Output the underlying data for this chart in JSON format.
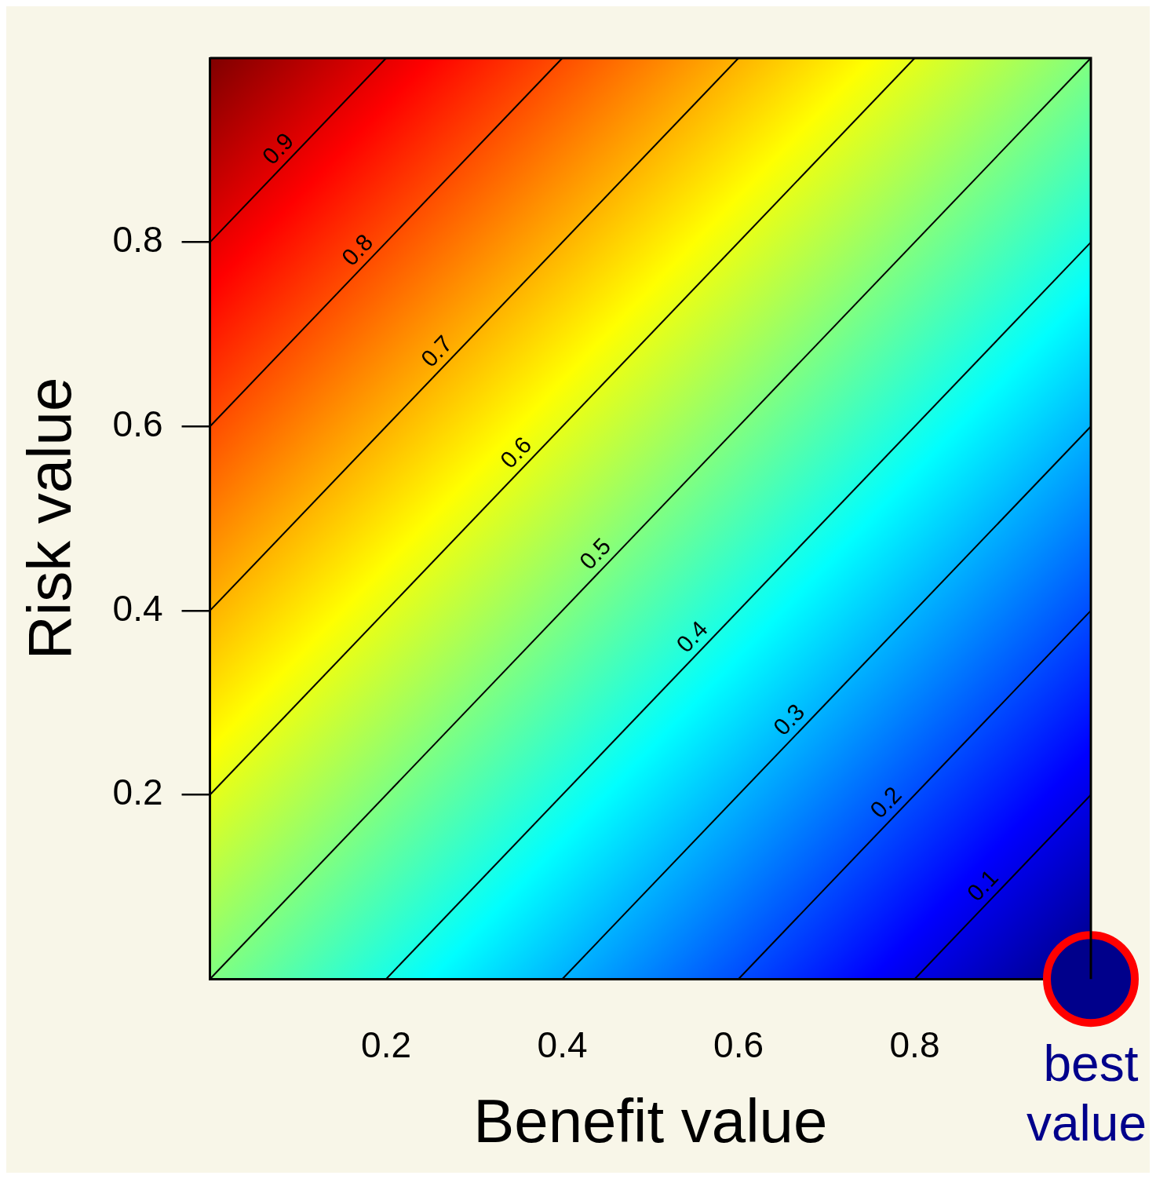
{
  "chart_data": {
    "type": "line",
    "xlabel": "Benefit value",
    "ylabel": "Risk value",
    "xlim": [
      0,
      1
    ],
    "ylim": [
      0,
      1
    ],
    "xticks": [
      0.2,
      0.4,
      0.6,
      0.8
    ],
    "yticks": [
      0.2,
      0.4,
      0.6,
      0.8
    ],
    "grid": false,
    "legend": false,
    "line_style": "solid",
    "series": [
      {
        "name": "0.1",
        "color": "#000000",
        "x": [
          0.8,
          1
        ],
        "values": [
          0,
          0.2
        ]
      },
      {
        "name": "0.2",
        "color": "#000000",
        "x": [
          0.6,
          1
        ],
        "values": [
          0,
          0.4
        ]
      },
      {
        "name": "0.3",
        "color": "#000000",
        "x": [
          0.4,
          1
        ],
        "values": [
          0,
          0.6
        ]
      },
      {
        "name": "0.4",
        "color": "#000000",
        "x": [
          0.2,
          1
        ],
        "values": [
          0,
          0.8
        ]
      },
      {
        "name": "0.5",
        "color": "#000000",
        "x": [
          0,
          1
        ],
        "values": [
          0,
          1
        ]
      },
      {
        "name": "0.6",
        "color": "#000000",
        "x": [
          0,
          0.8
        ],
        "values": [
          0.2,
          1
        ]
      },
      {
        "name": "0.7",
        "color": "#000000",
        "x": [
          0,
          0.6
        ],
        "values": [
          0.4,
          1
        ]
      },
      {
        "name": "0.8",
        "color": "#000000",
        "x": [
          0,
          0.4
        ],
        "values": [
          0.6,
          1
        ]
      },
      {
        "name": "0.9",
        "color": "#000000",
        "x": [
          0,
          0.2
        ],
        "values": [
          0.8,
          1
        ]
      },
      {
        "type": "scatter",
        "marker": "circle",
        "color": "#00008b",
        "x": [
          1
        ],
        "values": [
          0
        ]
      }
    ],
    "annotations": [
      {
        "text": "best value",
        "x": 1,
        "y": 0
      }
    ]
  }
}
